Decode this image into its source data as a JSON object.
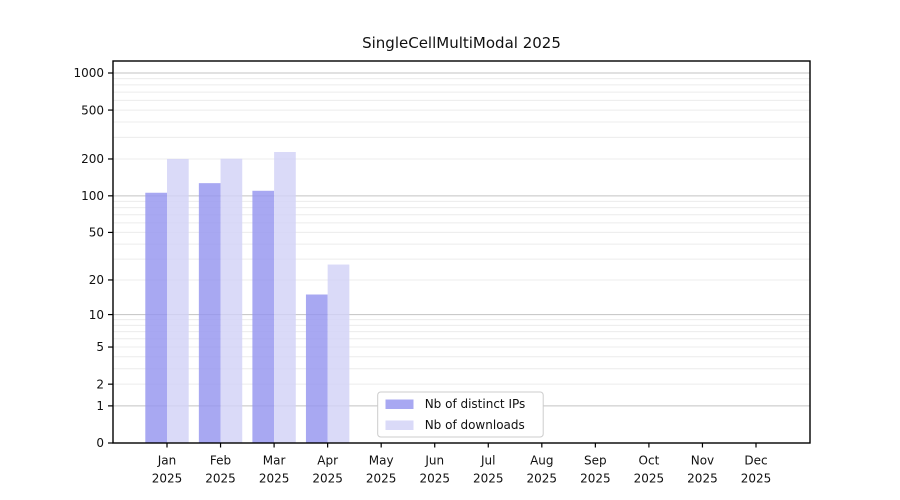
{
  "figure": {
    "background": "#ffffff"
  },
  "chart_data": {
    "type": "bar",
    "title": "SingleCellMultiModal 2025",
    "x_tick_months": [
      "Jan",
      "Feb",
      "Mar",
      "Apr",
      "May",
      "Jun",
      "Jul",
      "Aug",
      "Sep",
      "Oct",
      "Nov",
      "Dec"
    ],
    "x_tick_year": "2025",
    "categories": [
      "Jan 2025",
      "Feb 2025",
      "Mar 2025",
      "Apr 2025",
      "May 2025",
      "Jun 2025",
      "Jul 2025",
      "Aug 2025",
      "Sep 2025",
      "Oct 2025",
      "Nov 2025",
      "Dec 2025"
    ],
    "series": [
      {
        "name": "Nb of distinct IPs",
        "color": "#9595ef",
        "values": [
          106,
          127,
          110,
          15,
          0,
          0,
          0,
          0,
          0,
          0,
          0,
          0
        ]
      },
      {
        "name": "Nb of downloads",
        "color": "#d2d2f7",
        "values": [
          200,
          201,
          228,
          27,
          0,
          0,
          0,
          0,
          0,
          0,
          0,
          0
        ]
      }
    ],
    "bar_fill_opacity": 0.82,
    "y_ticks": [
      0,
      1,
      2,
      5,
      10,
      20,
      50,
      100,
      200,
      500,
      1000
    ],
    "y_scale": "log1p",
    "ylim": [
      0,
      1260
    ],
    "grid": {
      "orientation": "horizontal",
      "major_color": "#c3c3c3",
      "minor_color": "#ececec"
    },
    "axis_color": "#000000",
    "text_color": "#111111",
    "legend": {
      "position": "inside-bottom-center-left",
      "background": "#ffffff",
      "border_color": "#cccccc"
    }
  }
}
